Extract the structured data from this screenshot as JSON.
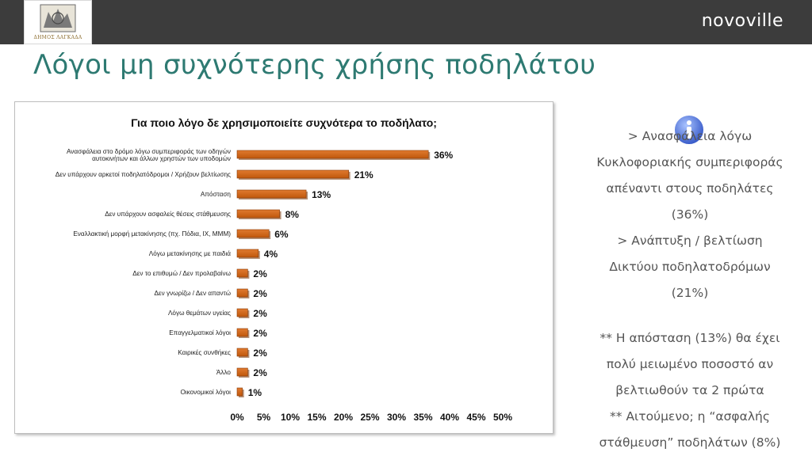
{
  "header": {
    "logo_text": "ΔΗΜΟΣ ΛΑΓΚΑΔΑ",
    "brand": "novoville"
  },
  "slide_title": "Λόγοι μη συχνότερης χρήσης ποδηλάτου",
  "chart_data": {
    "type": "bar",
    "orientation": "horizontal",
    "title": "Για ποιο λόγο δε χρησιμοποιείτε συχνότερα το ποδήλατο;",
    "categories": [
      "Ανασφάλεια στο δρόμο λόγω συμπεριφοράς των οδηγών αυτοκινήτων και άλλων χρηστών των υποδομών",
      "Δεν υπάρχουν αρκετοί ποδηλατόδρομοι / Χρήζουν βελτίωσης",
      "Απόσταση",
      "Δεν υπάρχουν ασφαλείς θέσεις στάθμευσης",
      "Εναλλακτική μορφή μετακίνησης (πχ. Πόδια, ΙΧ, ΜΜΜ)",
      "Λόγω μετακίνησης με παιδιά",
      "Δεν το επιθυμώ / Δεν προλαβαίνω",
      "Δεν γνωρίζω / Δεν απαντώ",
      "Λόγω θεμάτων υγείας",
      "Επαγγελματικοί λόγοι",
      "Καιρικές συνθήκες",
      "Άλλο",
      "Οικονομικοί λόγοι"
    ],
    "values": [
      36,
      21,
      13,
      8,
      6,
      4,
      2,
      2,
      2,
      2,
      2,
      2,
      1
    ],
    "value_labels": [
      "36%",
      "21%",
      "13%",
      "8%",
      "6%",
      "4%",
      "2%",
      "2%",
      "2%",
      "2%",
      "2%",
      "2%",
      "1%"
    ],
    "xlim": [
      0,
      50
    ],
    "xticks": [
      "0%",
      "5%",
      "10%",
      "15%",
      "20%",
      "25%",
      "30%",
      "35%",
      "40%",
      "45%",
      "50%"
    ],
    "bar_color": "#c0580c",
    "bar_color_light": "#e07a30",
    "grid": false
  },
  "notes": {
    "icon": "info-icon",
    "lines_group1": [
      "> Ανασφάλεια λόγω",
      "Κυκλοφοριακής συμπεριφοράς",
      "απέναντι στους ποδηλάτες",
      "(36%)",
      "> Ανάπτυξη / βελτίωση",
      "Δικτύου ποδηλατοδρόμων",
      "(21%)"
    ],
    "lines_group2": [
      "** Η απόσταση (13%) θα έχει",
      "πολύ μειωμένο ποσοστό αν",
      "βελτιωθούν τα 2 πρώτα",
      "** Αιτούμενο;  η “ασφαλής",
      "στάθμευση” ποδηλάτων (8%)"
    ]
  }
}
